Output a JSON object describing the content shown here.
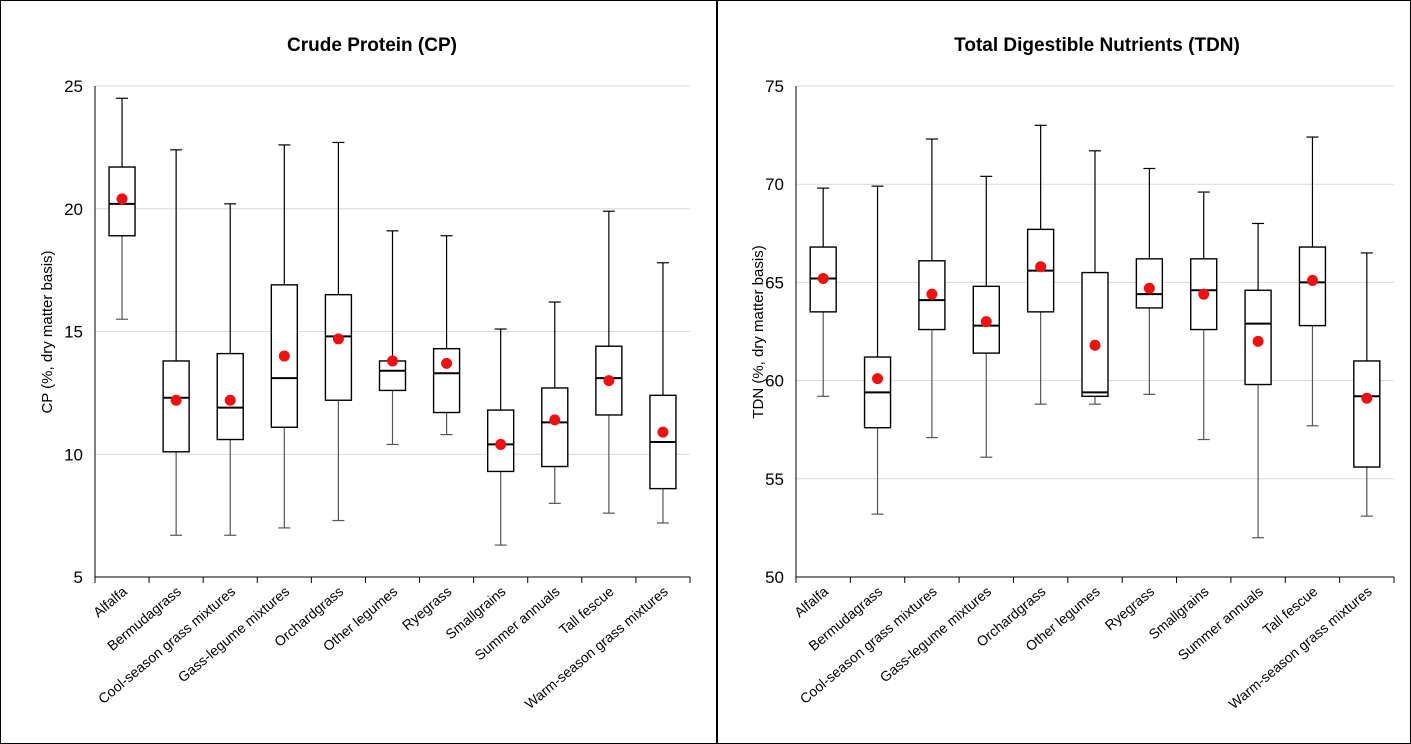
{
  "colors": {
    "mean_marker": "#ee1111",
    "box_stroke": "#000000",
    "whisker": "#555555",
    "grid": "#d9d9d9"
  },
  "chart_data": [
    {
      "type": "box",
      "title": "Crude Protein (CP)",
      "ylabel": "CP (%, dry matter basis)",
      "ylim": [
        5,
        25
      ],
      "yticks": [
        5,
        10,
        15,
        20,
        25
      ],
      "grid": true,
      "categories": [
        "Alfalfa",
        "Bermudagrass",
        "Cool-season grass mixtures",
        "Gass-legume mixtures",
        "Orchardgrass",
        "Other legumes",
        "Ryegrass",
        "Smallgrains",
        "Summer annuals",
        "Tall fescue",
        "Warm-season grass mixtures"
      ],
      "min": [
        15.5,
        6.7,
        6.7,
        7.0,
        7.3,
        10.4,
        10.8,
        6.3,
        8.0,
        7.6,
        7.2
      ],
      "q1": [
        18.9,
        10.1,
        10.6,
        11.1,
        12.2,
        12.6,
        11.7,
        9.3,
        9.5,
        11.6,
        8.6
      ],
      "median": [
        20.2,
        12.3,
        11.9,
        13.1,
        14.8,
        13.4,
        13.3,
        10.4,
        11.3,
        13.1,
        10.5
      ],
      "q3": [
        21.7,
        13.8,
        14.1,
        16.9,
        16.5,
        13.8,
        14.3,
        11.8,
        12.7,
        14.4,
        12.4
      ],
      "max": [
        24.5,
        22.4,
        20.2,
        22.6,
        22.7,
        19.1,
        18.9,
        15.1,
        16.2,
        19.9,
        17.8
      ],
      "mean": [
        20.4,
        12.2,
        12.2,
        14.0,
        14.7,
        13.8,
        13.7,
        10.4,
        11.4,
        13.0,
        10.9
      ]
    },
    {
      "type": "box",
      "title": "Total Digestible Nutrients (TDN)",
      "ylabel": "TDN (%, dry matter basis)",
      "ylim": [
        50,
        75
      ],
      "yticks": [
        50,
        55,
        60,
        65,
        70,
        75
      ],
      "grid": true,
      "categories": [
        "Alfalfa",
        "Bermudagrass",
        "Cool-season grass mixtures",
        "Gass-legume mixtures",
        "Orchardgrass",
        "Other legumes",
        "Ryegrass",
        "Smallgrains",
        "Summer annuals",
        "Tall fescue",
        "Warm-season grass mixtures"
      ],
      "min": [
        59.2,
        53.2,
        57.1,
        56.1,
        58.8,
        58.8,
        59.3,
        57.0,
        52.0,
        57.7,
        53.1
      ],
      "q1": [
        63.5,
        57.6,
        62.6,
        61.4,
        63.5,
        59.2,
        63.7,
        62.6,
        59.8,
        62.8,
        55.6
      ],
      "median": [
        65.2,
        59.4,
        64.1,
        62.8,
        65.6,
        59.4,
        64.4,
        64.6,
        62.9,
        65.0,
        59.2
      ],
      "q3": [
        66.8,
        61.2,
        66.1,
        64.8,
        67.7,
        65.5,
        66.2,
        66.2,
        64.6,
        66.8,
        61.0
      ],
      "max": [
        69.8,
        69.9,
        72.3,
        70.4,
        73.0,
        71.7,
        70.8,
        69.6,
        68.0,
        72.4,
        66.5
      ],
      "mean": [
        65.2,
        60.1,
        64.4,
        63.0,
        65.8,
        61.8,
        64.7,
        64.4,
        62.0,
        65.1,
        59.1
      ]
    }
  ]
}
